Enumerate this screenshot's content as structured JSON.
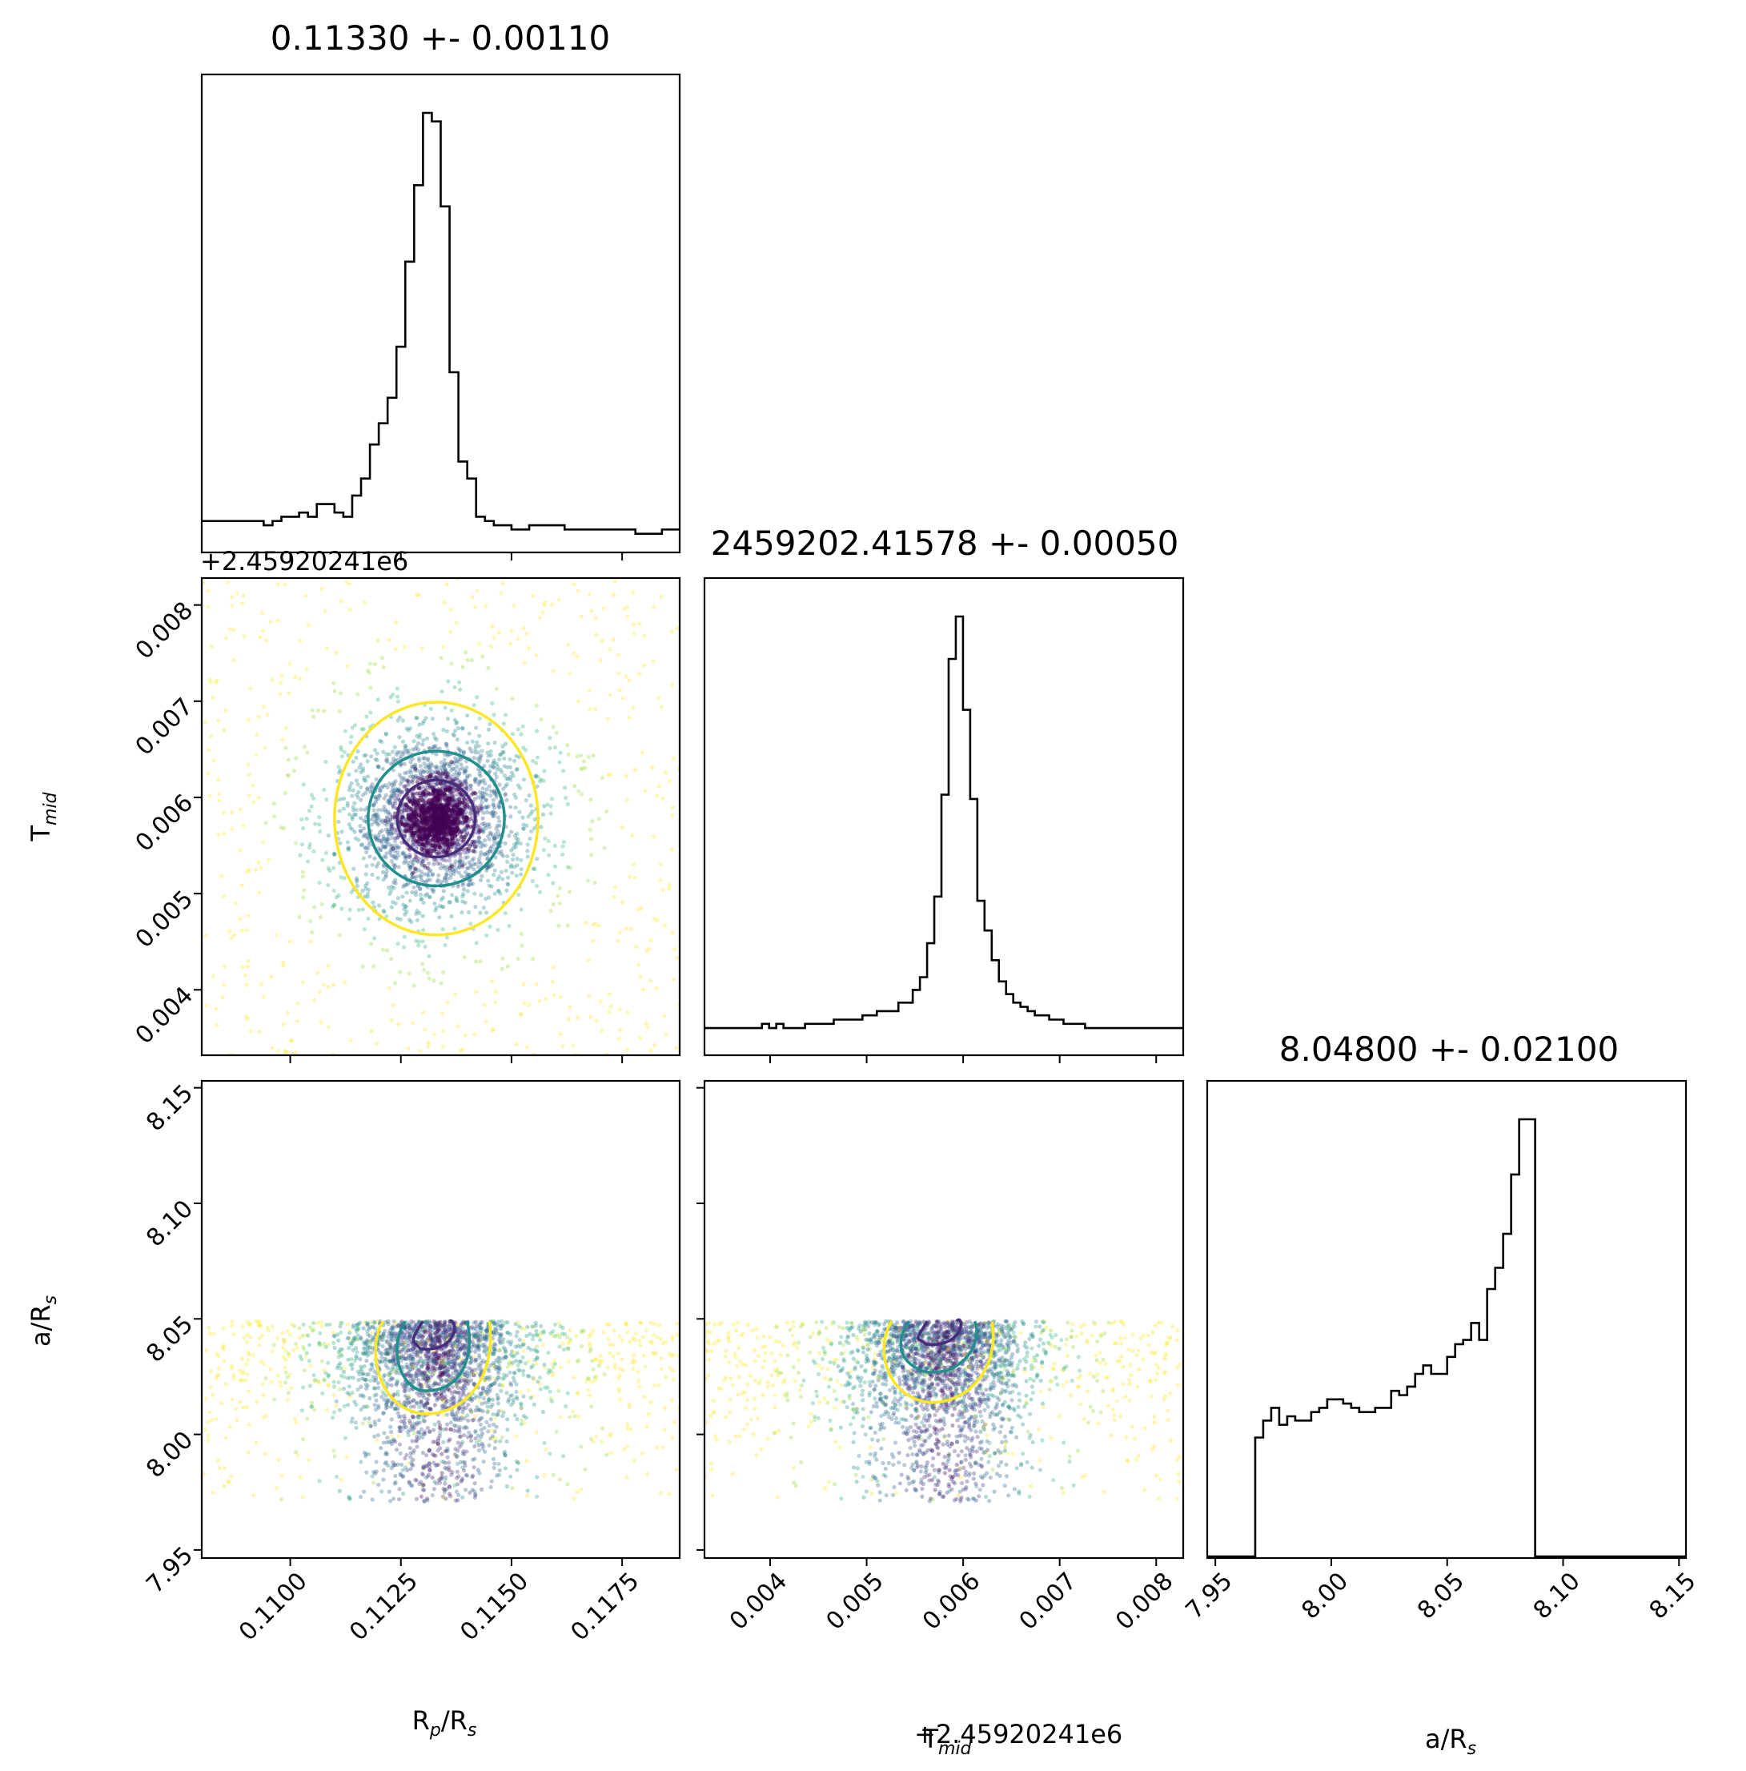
{
  "chart_data": {
    "type": "corner",
    "parameters": [
      "R_p/R_s",
      "T_mid",
      "a/R_s"
    ],
    "titles": [
      "0.11330 +- 0.00110",
      "2459202.41578 +- 0.00050",
      "8.04800 +- 0.02100"
    ],
    "axis_labels": {
      "rp": {
        "base": "R",
        "sub": "p",
        "suffix": "/R",
        "sub2": "s"
      },
      "tmid": {
        "base": "T",
        "sub": "mid",
        "suffix": "",
        "sub2": ""
      },
      "ars": {
        "base": "a/R",
        "sub": "s",
        "suffix": "",
        "sub2": ""
      }
    },
    "offset_label": "+2.45920241e6",
    "ranges": {
      "rp": [
        0.108,
        0.1188
      ],
      "tmid": [
        0.00332,
        0.00828
      ],
      "ars": [
        7.9465,
        8.153
      ]
    },
    "ticks": {
      "rp": [
        "0.1100",
        "0.1125",
        "0.1150",
        "0.1175"
      ],
      "tmid": [
        "0.004",
        "0.005",
        "0.006",
        "0.007",
        "0.008"
      ],
      "ars": [
        "7.95",
        "8.00",
        "8.05",
        "8.10",
        "8.15"
      ]
    },
    "tick_values": {
      "rp": [
        0.11,
        0.1125,
        0.115,
        0.1175
      ],
      "tmid": [
        0.004,
        0.005,
        0.006,
        0.007,
        0.008
      ],
      "ars": [
        7.95,
        8.0,
        8.05,
        8.1,
        8.15
      ]
    },
    "histograms": {
      "rp": {
        "start": 0.108,
        "width": 0.0002,
        "counts": [
          4,
          4,
          4,
          4,
          4,
          4,
          4,
          3,
          4,
          5,
          5,
          6,
          5,
          8,
          8,
          6,
          5,
          10,
          14,
          22,
          27,
          33,
          45,
          65,
          83,
          100,
          98,
          78,
          39,
          18,
          14,
          5,
          4,
          3,
          3,
          2,
          2,
          3,
          3,
          3,
          3,
          2,
          2,
          2,
          2,
          2,
          2,
          2,
          2,
          1,
          1,
          1,
          2,
          2
        ]
      },
      "tmid": {
        "start": 0.00332,
        "width": 7.44e-05,
        "counts": [
          3,
          3,
          3,
          3,
          3,
          3,
          3,
          3,
          4,
          3,
          4,
          3,
          3,
          3,
          4,
          4,
          4,
          4,
          5,
          5,
          5,
          5,
          6,
          6,
          7,
          7,
          7,
          9,
          9,
          12,
          15,
          23,
          34,
          58,
          90,
          100,
          78,
          57,
          33,
          26,
          19,
          14,
          11,
          9,
          8,
          7,
          6,
          6,
          5,
          5,
          4,
          4,
          4,
          3,
          3,
          3,
          3,
          3,
          3,
          3,
          3,
          3,
          3,
          3,
          3,
          3,
          3
        ]
      },
      "ars": {
        "start": 7.9465,
        "width": 0.00345,
        "counts": [
          0,
          0,
          0,
          0,
          0,
          0,
          25,
          29,
          32,
          28,
          30,
          29,
          29,
          31,
          32,
          34,
          34,
          33,
          32,
          31,
          31,
          32,
          32,
          36,
          35,
          37,
          40,
          42,
          40,
          40,
          44,
          47,
          48,
          52,
          48,
          60,
          65,
          73,
          87,
          100,
          100,
          0,
          0,
          0,
          0,
          0,
          0,
          0,
          0,
          0,
          0,
          0,
          0,
          0,
          0,
          0,
          0,
          0,
          0,
          0
        ]
      }
    },
    "contour_levels": [
      "inner",
      "middle",
      "outer"
    ],
    "colors": {
      "inner": "#472c7a",
      "middle": "#21908d",
      "outer": "#fde725",
      "points": [
        "#fde725",
        "#9fda3a",
        "#35b779",
        "#21908d",
        "#31688e",
        "#443983",
        "#440154"
      ],
      "hist": "#000000"
    },
    "grid": false
  }
}
